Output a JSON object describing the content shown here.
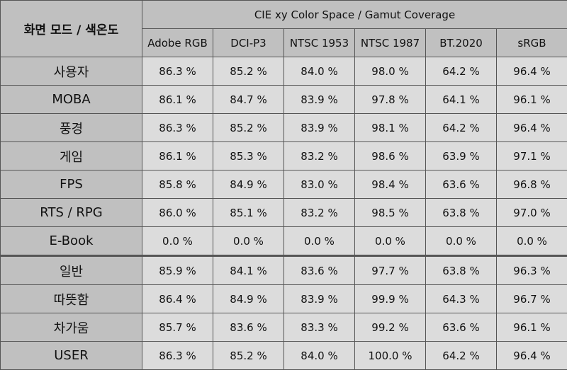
{
  "table": {
    "corner_header": "화면 모드 / 색온도",
    "group_header": "CIE xy Color Space / Gamut Coverage",
    "columns": [
      "Adobe RGB",
      "DCI-P3",
      "NTSC 1953",
      "NTSC 1987",
      "BT.2020",
      "sRGB"
    ],
    "rows": [
      {
        "label": "사용자",
        "values": [
          "86.3 %",
          "85.2 %",
          "84.0 %",
          "98.0 %",
          "64.2 %",
          "96.4 %"
        ]
      },
      {
        "label": "MOBA",
        "values": [
          "86.1 %",
          "84.7 %",
          "83.9 %",
          "97.8 %",
          "64.1 %",
          "96.1 %"
        ]
      },
      {
        "label": "풍경",
        "values": [
          "86.3 %",
          "85.2 %",
          "83.9 %",
          "98.1 %",
          "64.2 %",
          "96.4 %"
        ]
      },
      {
        "label": "게임",
        "values": [
          "86.1 %",
          "85.3 %",
          "83.2 %",
          "98.6 %",
          "63.9 %",
          "97.1 %"
        ]
      },
      {
        "label": "FPS",
        "values": [
          "85.8 %",
          "84.9 %",
          "83.0 %",
          "98.4 %",
          "63.6 %",
          "96.8 %"
        ]
      },
      {
        "label": "RTS / RPG",
        "values": [
          "86.0 %",
          "85.1 %",
          "83.2 %",
          "98.5 %",
          "63.8 %",
          "97.0 %"
        ]
      },
      {
        "label": "E-Book",
        "values": [
          "0.0 %",
          "0.0 %",
          "0.0 %",
          "0.0 %",
          "0.0 %",
          "0.0 %"
        ]
      },
      {
        "label": "일반",
        "values": [
          "85.9 %",
          "84.1 %",
          "83.6 %",
          "97.7 %",
          "63.8 %",
          "96.3 %"
        ]
      },
      {
        "label": "따뜻함",
        "values": [
          "86.4 %",
          "84.9 %",
          "83.9 %",
          "99.9 %",
          "64.3 %",
          "96.7 %"
        ]
      },
      {
        "label": "차가움",
        "values": [
          "85.7 %",
          "83.6 %",
          "83.3 %",
          "99.2 %",
          "63.6 %",
          "96.1 %"
        ]
      },
      {
        "label": "USER",
        "values": [
          "86.3 %",
          "85.2 %",
          "84.0 %",
          "100.0 %",
          "64.2 %",
          "96.4 %"
        ]
      }
    ]
  }
}
